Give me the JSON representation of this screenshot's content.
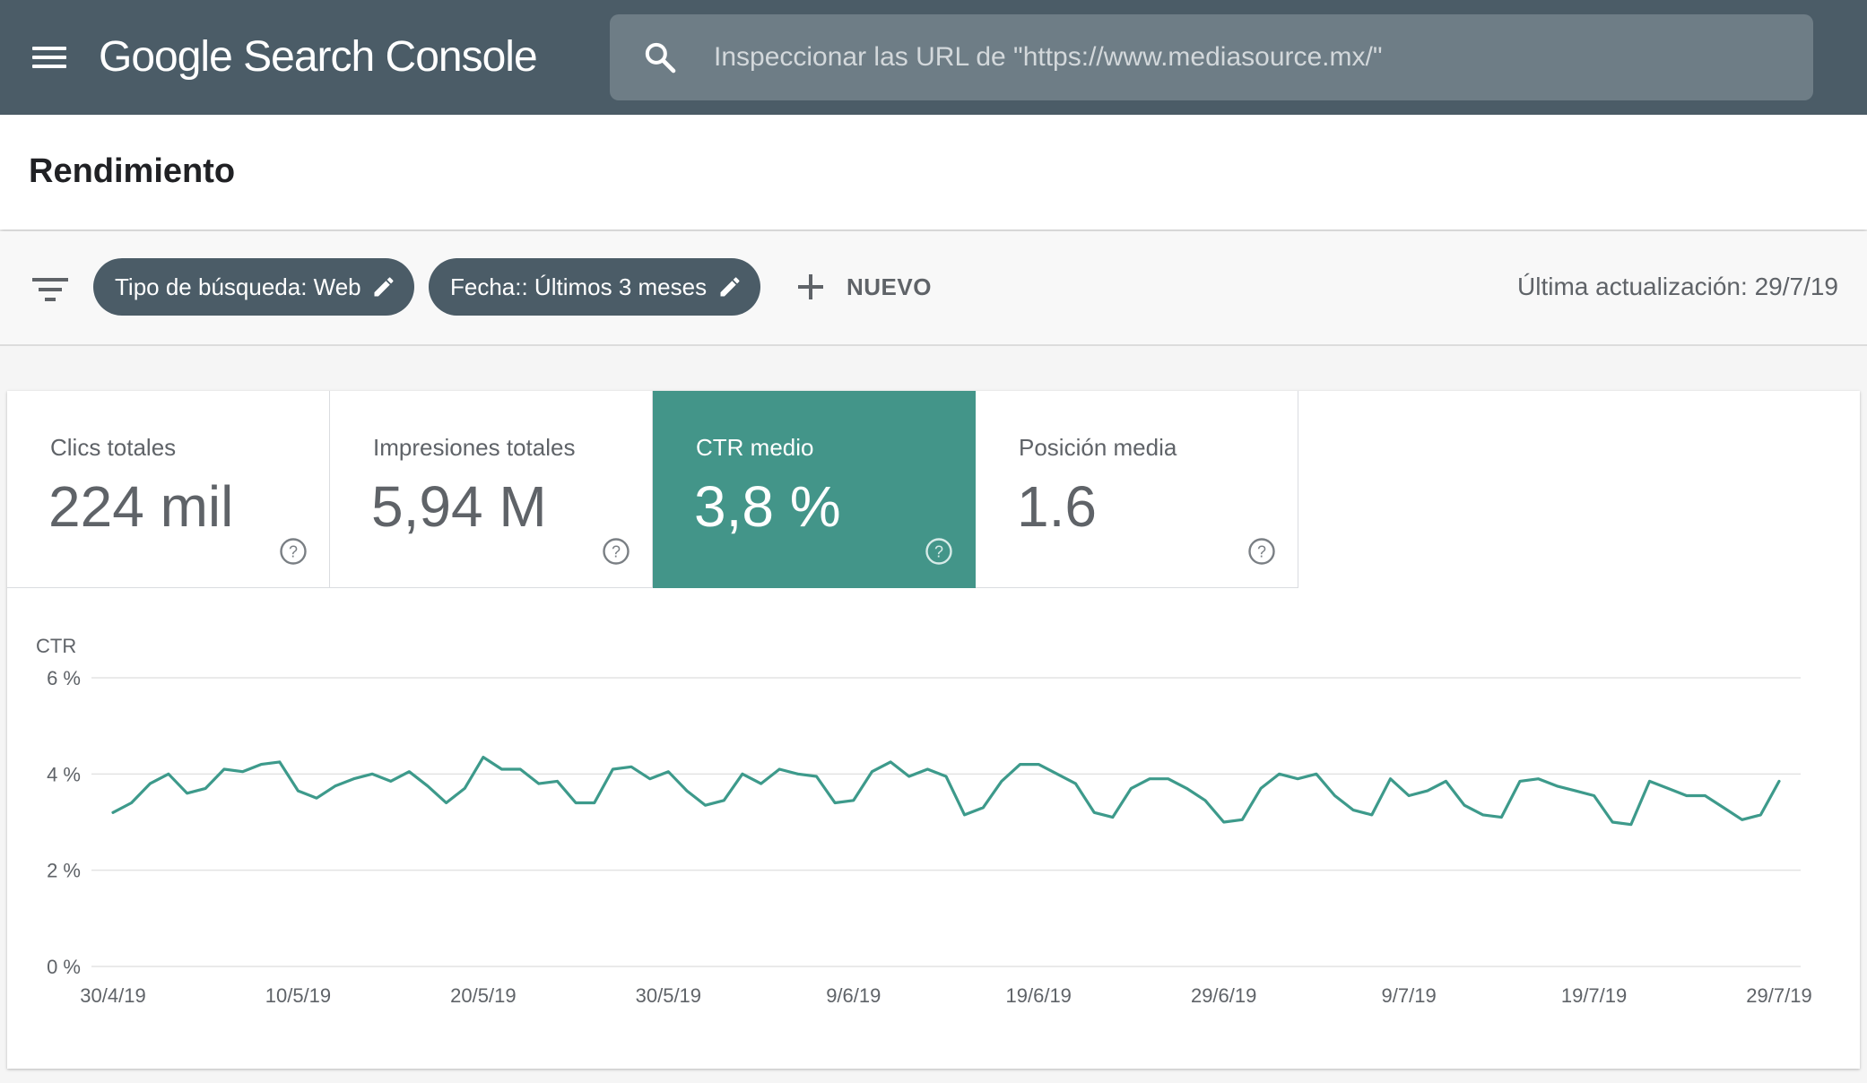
{
  "header": {
    "app_title": "Google Search Console",
    "search": {
      "placeholder": "Inspeccionar las URL de \"https://www.mediasource.mx/\"",
      "value": ""
    }
  },
  "page": {
    "title": "Rendimiento"
  },
  "filters": {
    "chips": [
      {
        "label": "Tipo de búsqueda: Web"
      },
      {
        "label": "Fecha:: Últimos 3 meses"
      }
    ],
    "new_label": "NUEVO",
    "last_update": "Última actualización: 29/7/19"
  },
  "metrics": [
    {
      "label": "Clics totales",
      "value": "224 mil",
      "active": false
    },
    {
      "label": "Impresiones totales",
      "value": "5,94 M",
      "active": false
    },
    {
      "label": "CTR medio",
      "value": "3,8 %",
      "active": true
    },
    {
      "label": "Posición media",
      "value": "1.6",
      "active": false
    }
  ],
  "colors": {
    "topbar": "#4b5c67",
    "accent": "#439589",
    "line": "#3d9a8b"
  },
  "chart_data": {
    "type": "line",
    "ylabel": "CTR",
    "ylim": [
      0,
      6
    ],
    "yticks": [
      "6 %",
      "4 %",
      "2 %",
      "0 %"
    ],
    "ytick_values": [
      6,
      4,
      2,
      0
    ],
    "xtick_labels": [
      "30/4/19",
      "10/5/19",
      "20/5/19",
      "30/5/19",
      "9/6/19",
      "19/6/19",
      "29/6/19",
      "9/7/19",
      "19/7/19",
      "29/7/19"
    ],
    "x_start": "30/4/19",
    "x_end": "29/7/19",
    "grid": true,
    "series": [
      {
        "name": "",
        "values": [
          3.2,
          3.4,
          3.8,
          4.0,
          3.6,
          3.7,
          4.1,
          4.05,
          4.2,
          4.25,
          3.65,
          3.5,
          3.75,
          3.9,
          4.0,
          3.85,
          4.05,
          3.75,
          3.4,
          3.7,
          4.35,
          4.1,
          4.1,
          3.8,
          3.85,
          3.4,
          3.4,
          4.1,
          4.15,
          3.9,
          4.05,
          3.65,
          3.35,
          3.45,
          4.0,
          3.8,
          4.1,
          4.0,
          3.95,
          3.4,
          3.45,
          4.05,
          4.25,
          3.95,
          4.1,
          3.95,
          3.15,
          3.3,
          3.85,
          4.2,
          4.2,
          4.0,
          3.8,
          3.2,
          3.1,
          3.7,
          3.9,
          3.9,
          3.7,
          3.45,
          3.0,
          3.05,
          3.7,
          4.0,
          3.9,
          4.0,
          3.55,
          3.25,
          3.15,
          3.9,
          3.55,
          3.65,
          3.85,
          3.35,
          3.15,
          3.1,
          3.85,
          3.9,
          3.75,
          3.65,
          3.55,
          3.0,
          2.95,
          3.85,
          3.7,
          3.55,
          3.55,
          3.3,
          3.05,
          3.15,
          3.85
        ]
      }
    ]
  }
}
